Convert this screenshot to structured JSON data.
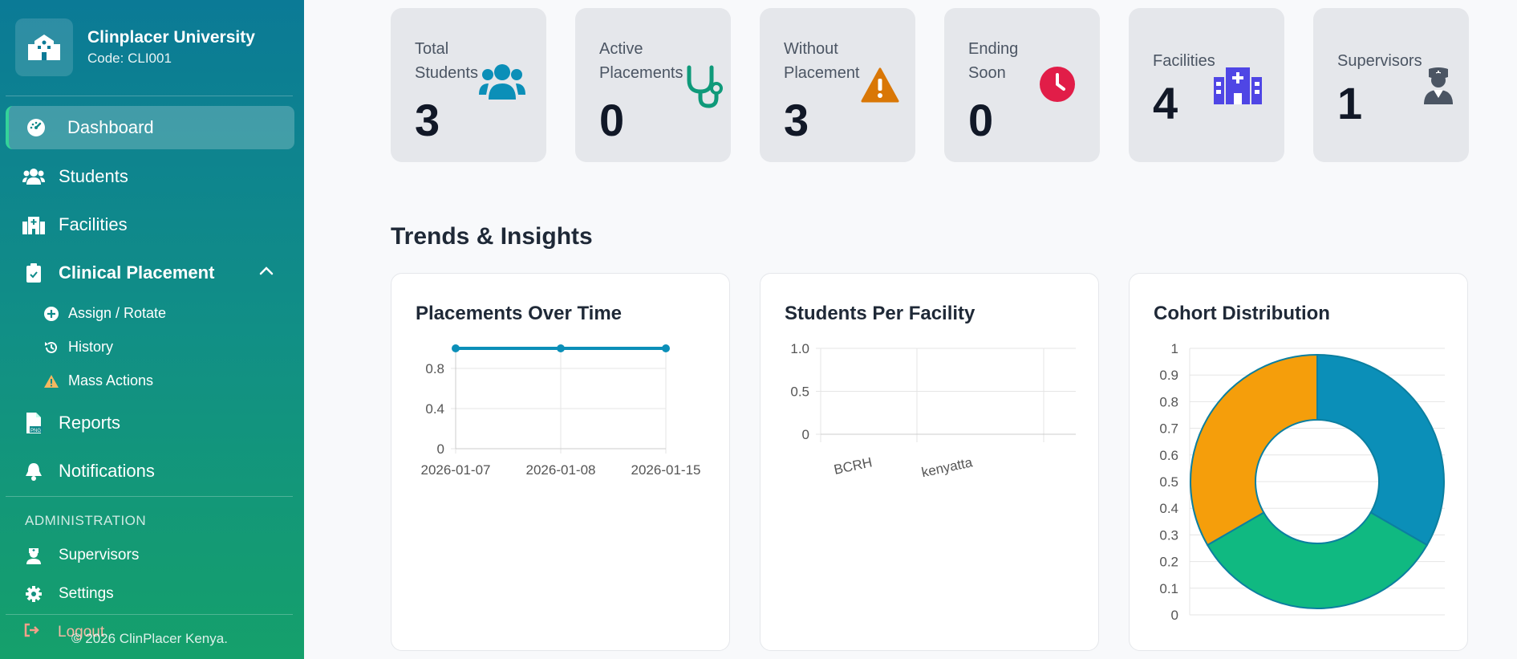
{
  "sidebar": {
    "brand": {
      "name": "Clinplacer University",
      "code": "Code: CLI001"
    },
    "nav": {
      "dashboard": "Dashboard",
      "students": "Students",
      "facilities": "Facilities",
      "clinical": "Clinical Placement",
      "assign": "Assign / Rotate",
      "history": "History",
      "mass": "Mass Actions",
      "reports": "Reports",
      "notifications": "Notifications",
      "admin_section": "ADMINISTRATION",
      "supervisors": "Supervisors",
      "settings": "Settings",
      "logout": "Logout"
    },
    "footer": "© 2026 ClinPlacer Kenya."
  },
  "stats": [
    {
      "label1": "Total",
      "label2": "Students",
      "value": "3",
      "icon": "users-icon",
      "color": "#0b8fb8"
    },
    {
      "label1": "Active",
      "label2": "Placements",
      "value": "0",
      "icon": "stethoscope-icon",
      "color": "#0f9a7a"
    },
    {
      "label1": "Without",
      "label2": "Placement",
      "value": "3",
      "icon": "warning-icon",
      "color": "#d97706"
    },
    {
      "label1": "Ending",
      "label2": "Soon",
      "value": "0",
      "icon": "clock-icon",
      "color": "#e11d48"
    },
    {
      "label1": "Facilities",
      "label2": "",
      "value": "4",
      "icon": "hospital-icon",
      "color": "#4f46e5"
    },
    {
      "label1": "Supervisors",
      "label2": "",
      "value": "1",
      "icon": "user-nurse-icon",
      "color": "#4b5563"
    }
  ],
  "insights_title": "Trends & Insights",
  "chart_data": [
    {
      "type": "line",
      "title": "Placements Over Time",
      "x": [
        "2026-01-07",
        "2026-01-08",
        "2026-01-15"
      ],
      "series": [
        {
          "values": [
            1,
            1,
            1
          ],
          "color": "#0b8fb8"
        }
      ],
      "yticks": [
        "0",
        "0.4",
        "0.8"
      ],
      "ylim": [
        0,
        1
      ],
      "grid": true
    },
    {
      "type": "bar",
      "title": "Students Per Facility",
      "categories": [
        "BCRH",
        "kenyatta"
      ],
      "values": [
        0,
        0
      ],
      "yticks": [
        "0",
        "0.5",
        "1.0"
      ],
      "ylim": [
        0,
        1
      ],
      "grid": true
    },
    {
      "type": "pie",
      "title": "Cohort Distribution",
      "slices": [
        {
          "value": 1,
          "color": "#0b8fb8"
        },
        {
          "value": 1,
          "color": "#10b981"
        },
        {
          "value": 1,
          "color": "#f59e0b"
        }
      ],
      "yticks": [
        "0",
        "0.1",
        "0.2",
        "0.3",
        "0.4",
        "0.5",
        "0.6",
        "0.7",
        "0.8",
        "0.9",
        "1"
      ],
      "grid": true
    }
  ]
}
